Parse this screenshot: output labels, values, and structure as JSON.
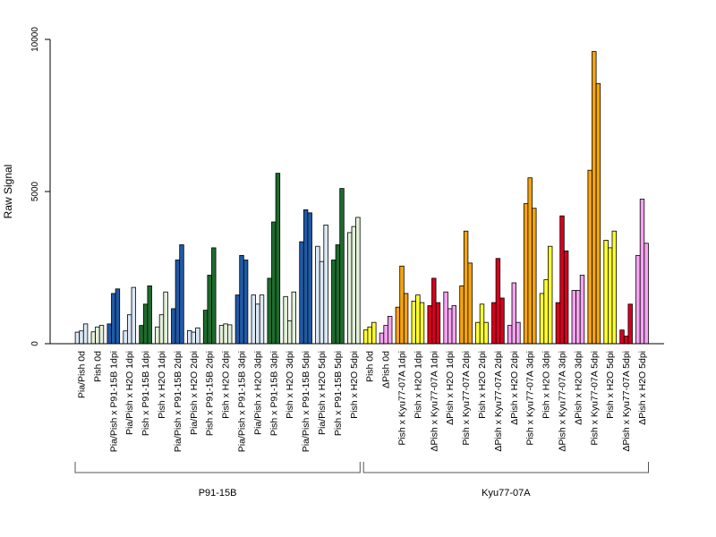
{
  "chart_data": {
    "type": "bar",
    "ylabel": "Raw Signal",
    "ylim": [
      0,
      10000
    ],
    "yticks": [
      0,
      5000,
      10000
    ],
    "bars_per_group": 3,
    "categories": [
      "Pia/Pish 0d",
      "Pish 0d",
      "Pia/Pish x P91-15B 1dpi",
      "Pia/Pish x H2O 1dpi",
      "Pish x P91-15B 1dpi",
      "Pish x H2O 1dpi",
      "Pia/Pish x P91-15B 2dpi",
      "Pia/Pish x H2O 2dpi",
      "Pish x P91-15B 2dpi",
      "Pish x H2O 2dpi",
      "Pia/Pish x P91-15B 3dpi",
      "Pia/Pish x H2O 3dpi",
      "Pish x P91-15B 3dpi",
      "Pish x H2O 3dpi",
      "Pia/Pish x P91-15B 5dpi",
      "Pia/Pish x H2O 5dpi",
      "Pish x P91-15B 5dpi",
      "Pish x H2O 5dpi",
      "Pish 0d",
      "ΔPish 0d",
      "Pish x Kyu77-07A 1dpi",
      "Pish x H2O 1dpi",
      "ΔPish x Kyu77-07A 1dpi",
      "ΔPish x H2O 1dpi",
      "Pish x Kyu77-07A 2dpi",
      "Pish x H2O 2dpi",
      "ΔPish x Kyu77-07A 2dpi",
      "ΔPish x H2O 2dpi",
      "Pish x Kyu77-07A 3dpi",
      "Pish x H2O 3dpi",
      "ΔPish x Kyu77-07A 3dpi",
      "ΔPish x H2O 3dpi",
      "Pish x Kyu77-07A 5dpi",
      "Pish x H2O 5dpi",
      "ΔPish x Kyu77-07A 5dpi",
      "ΔPish x H2O 5dpi"
    ],
    "colors": [
      "#dbe7f5",
      "#e2f0d9",
      "#1f5aa6",
      "#dbe7f5",
      "#1e6b2e",
      "#e2f0d9",
      "#1f5aa6",
      "#dbe7f5",
      "#1e6b2e",
      "#e2f0d9",
      "#1f5aa6",
      "#dbe7f5",
      "#1e6b2e",
      "#e2f0d9",
      "#1f5aa6",
      "#dbe7f5",
      "#1e6b2e",
      "#e2f0d9",
      "#ffff33",
      "#f5a3f0",
      "#f5a40c",
      "#ffff33",
      "#d7001e",
      "#f5a3f0",
      "#f5a40c",
      "#ffff33",
      "#d7001e",
      "#f5a3f0",
      "#f5a40c",
      "#ffff33",
      "#d7001e",
      "#f5a3f0",
      "#f5a40c",
      "#ffff33",
      "#d7001e",
      "#f5a3f0"
    ],
    "values": [
      [
        380,
        420,
        650
      ],
      [
        390,
        550,
        600
      ],
      [
        650,
        1650,
        1800
      ],
      [
        420,
        950,
        1850
      ],
      [
        600,
        1300,
        1900
      ],
      [
        550,
        950,
        1700
      ],
      [
        1150,
        2750,
        3250
      ],
      [
        430,
        380,
        520
      ],
      [
        1100,
        2250,
        3150
      ],
      [
        600,
        650,
        620
      ],
      [
        1600,
        2900,
        2750
      ],
      [
        1600,
        1300,
        1600
      ],
      [
        2150,
        4000,
        5600
      ],
      [
        1550,
        750,
        1700
      ],
      [
        3350,
        4400,
        4300
      ],
      [
        3200,
        2700,
        3900
      ],
      [
        2750,
        3250,
        5100
      ],
      [
        3650,
        3850,
        4150
      ],
      [
        450,
        550,
        700
      ],
      [
        350,
        600,
        900
      ],
      [
        1200,
        2550,
        1650
      ],
      [
        1400,
        1600,
        1350
      ],
      [
        1250,
        2150,
        1350
      ],
      [
        1700,
        1150,
        1250
      ],
      [
        1900,
        3700,
        2650
      ],
      [
        700,
        1300,
        700
      ],
      [
        1350,
        2800,
        1500
      ],
      [
        600,
        2000,
        700
      ],
      [
        4600,
        5450,
        4450
      ],
      [
        1650,
        2100,
        3200
      ],
      [
        1350,
        4200,
        3050
      ],
      [
        1750,
        1750,
        2250
      ],
      [
        5700,
        9600,
        8550
      ],
      [
        3400,
        3150,
        3700
      ],
      [
        450,
        250,
        1300
      ],
      [
        2900,
        4750,
        3300
      ]
    ],
    "groups": [
      {
        "label": "P91-15B",
        "start": 0,
        "end": 17
      },
      {
        "label": "Kyu77-07A",
        "start": 18,
        "end": 35
      }
    ]
  }
}
